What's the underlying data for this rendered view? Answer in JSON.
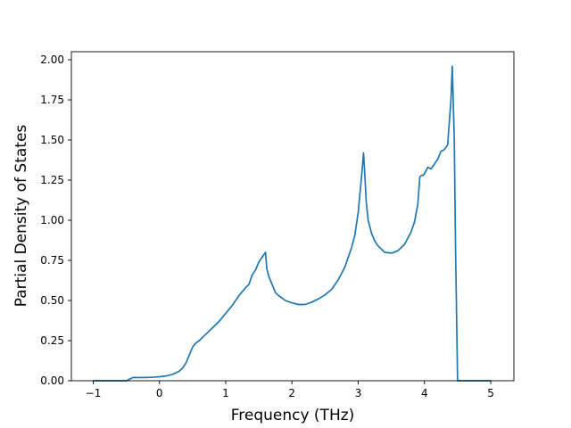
{
  "chart_data": {
    "type": "line",
    "title": "",
    "xlabel": "Frequency (THz)",
    "ylabel": "Partial Density of States",
    "xlim": [
      -1.33,
      5.35
    ],
    "ylim": [
      0.0,
      2.05
    ],
    "xticks": [
      -1,
      0,
      1,
      2,
      3,
      4,
      5
    ],
    "xtick_labels": [
      "−1",
      "0",
      "1",
      "2",
      "3",
      "4",
      "5"
    ],
    "yticks": [
      0.0,
      0.25,
      0.5,
      0.75,
      1.0,
      1.25,
      1.5,
      1.75,
      2.0
    ],
    "ytick_labels": [
      "0.00",
      "0.25",
      "0.50",
      "0.75",
      "1.00",
      "1.25",
      "1.50",
      "1.75",
      "2.00"
    ],
    "grid": false,
    "line_color": "#1f77b4",
    "series": [
      {
        "x": [
          -1.0,
          -0.6,
          -0.5,
          -0.45,
          -0.4,
          -0.35,
          -0.3,
          -0.2,
          -0.1,
          0.0,
          0.1,
          0.2,
          0.25,
          0.3,
          0.35,
          0.4,
          0.45,
          0.5,
          0.55,
          0.6,
          0.7,
          0.8,
          0.9,
          1.0,
          1.1,
          1.2,
          1.3,
          1.35,
          1.4,
          1.45,
          1.5,
          1.55,
          1.6,
          1.62,
          1.65,
          1.7,
          1.75,
          1.8,
          1.9,
          2.0,
          2.1,
          2.2,
          2.3,
          2.4,
          2.5,
          2.6,
          2.7,
          2.8,
          2.9,
          2.95,
          3.0,
          3.05,
          3.08,
          3.1,
          3.12,
          3.15,
          3.2,
          3.25,
          3.3,
          3.35,
          3.4,
          3.5,
          3.6,
          3.7,
          3.8,
          3.85,
          3.9,
          3.93,
          3.96,
          3.98,
          4.0,
          4.05,
          4.1,
          4.15,
          4.2,
          4.25,
          4.3,
          4.35,
          4.4,
          4.42,
          4.45,
          4.47,
          4.5,
          4.53,
          4.55,
          4.6,
          4.8,
          5.0
        ],
        "y": [
          0.0,
          0.0,
          0.0,
          0.01,
          0.02,
          0.02,
          0.02,
          0.02,
          0.022,
          0.025,
          0.03,
          0.04,
          0.05,
          0.06,
          0.08,
          0.11,
          0.16,
          0.21,
          0.235,
          0.25,
          0.29,
          0.33,
          0.37,
          0.42,
          0.47,
          0.53,
          0.58,
          0.6,
          0.66,
          0.69,
          0.74,
          0.77,
          0.8,
          0.7,
          0.65,
          0.6,
          0.55,
          0.53,
          0.5,
          0.485,
          0.475,
          0.475,
          0.49,
          0.51,
          0.535,
          0.57,
          0.63,
          0.71,
          0.83,
          0.91,
          1.05,
          1.27,
          1.42,
          1.28,
          1.12,
          1.0,
          0.92,
          0.87,
          0.84,
          0.82,
          0.8,
          0.795,
          0.81,
          0.85,
          0.93,
          0.99,
          1.1,
          1.27,
          1.28,
          1.28,
          1.29,
          1.33,
          1.32,
          1.35,
          1.38,
          1.43,
          1.44,
          1.47,
          1.75,
          1.96,
          1.5,
          0.8,
          0.0,
          0.0,
          0.0,
          0.0,
          0.0,
          0.0
        ]
      }
    ]
  }
}
